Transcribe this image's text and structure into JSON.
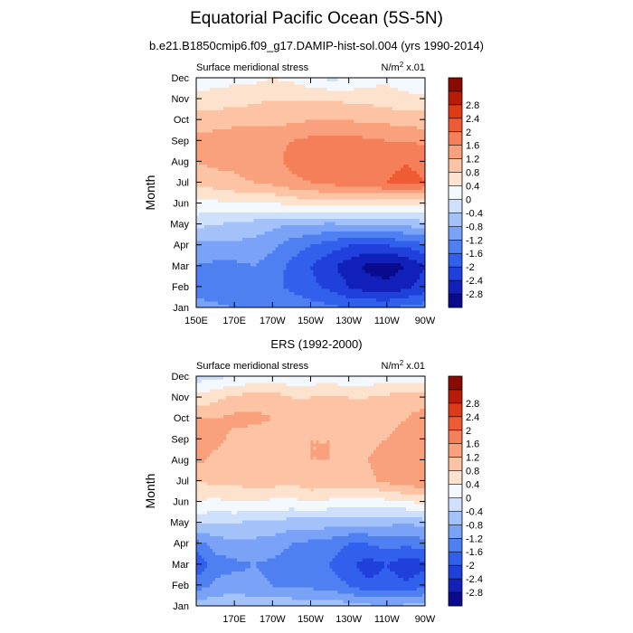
{
  "figure": {
    "title": "Equatorial Pacific Ocean (5S-5N)",
    "subtitle": "b.e21.B1850cmip6.f09_g17.DAMIP-hist-sol.004 (yrs 1990-2014)"
  },
  "colors": [
    "#0a0a8c",
    "#1020b8",
    "#2040dc",
    "#3060ec",
    "#4f80f2",
    "#7aa2f6",
    "#a4c2fa",
    "#cfe0fd",
    "#f4f9ff",
    "#fde2cd",
    "#fcc4a4",
    "#f9a07c",
    "#f57f58",
    "#ef5b35",
    "#df3a16",
    "#b81c08",
    "#8a0a00"
  ],
  "colorbar": {
    "levels": [
      -2.8,
      -2.4,
      -2,
      -1.6,
      -1.2,
      -0.8,
      -0.4,
      0,
      0.4,
      0.8,
      1.2,
      1.6,
      2,
      2.4,
      2.8
    ],
    "tick_labels": [
      "-2.8",
      "-2.4",
      "-2",
      "-1.6",
      "-1.2",
      "-0.8",
      "-0.4",
      "0",
      "0.4",
      "0.8",
      "1.2",
      "1.6",
      "2",
      "2.4",
      "2.8"
    ]
  },
  "chart_data": [
    {
      "type": "heatmap",
      "panel_title": "",
      "left_label": "Surface meridional stress",
      "right_label": "N/m",
      "right_label_sup": "2",
      "right_label_tail": " x.01",
      "ylabel": "Month",
      "x_tick_labels": [
        "150E",
        "170E",
        "170W",
        "150W",
        "130W",
        "110W",
        "90W"
      ],
      "y_tick_labels": [
        "Jan",
        "Feb",
        "Mar",
        "Apr",
        "May",
        "Jun",
        "Jul",
        "Aug",
        "Sep",
        "Oct",
        "Nov",
        "Dec"
      ],
      "x": [
        150,
        160,
        170,
        180,
        190,
        200,
        210,
        220,
        230,
        240,
        250,
        260,
        270
      ],
      "y": [
        "Jan",
        "Feb",
        "Mar",
        "Apr",
        "May",
        "Jun",
        "Jul",
        "Aug",
        "Sep",
        "Oct",
        "Nov",
        "Dec"
      ],
      "z": [
        [
          -1.0,
          -1.1,
          -1.2,
          -1.2,
          -1.2,
          -1.3,
          -1.4,
          -1.5,
          -1.6,
          -1.6,
          -1.6,
          -1.5,
          -1.4
        ],
        [
          -1.4,
          -1.5,
          -1.5,
          -1.4,
          -1.5,
          -1.7,
          -1.9,
          -2.1,
          -2.4,
          -2.6,
          -2.7,
          -2.5,
          -2.2
        ],
        [
          -1.2,
          -1.3,
          -1.3,
          -1.2,
          -1.4,
          -1.7,
          -2.0,
          -2.3,
          -2.6,
          -2.9,
          -3.0,
          -2.8,
          -2.4
        ],
        [
          -0.9,
          -0.9,
          -0.9,
          -0.9,
          -1.1,
          -1.4,
          -1.6,
          -1.8,
          -2.0,
          -2.1,
          -2.0,
          -1.9,
          -1.7
        ],
        [
          -0.3,
          -0.4,
          -0.5,
          -0.6,
          -0.7,
          -0.8,
          -0.8,
          -0.9,
          -0.8,
          -0.8,
          -0.7,
          -0.7,
          -0.6
        ],
        [
          0.3,
          0.3,
          0.4,
          0.4,
          0.4,
          0.5,
          0.6,
          0.6,
          0.6,
          0.6,
          0.6,
          0.5,
          0.5
        ],
        [
          0.9,
          1.0,
          1.1,
          1.2,
          1.3,
          1.5,
          1.6,
          1.7,
          1.8,
          1.9,
          2.0,
          2.1,
          2.0
        ],
        [
          1.2,
          1.3,
          1.3,
          1.4,
          1.5,
          1.7,
          1.8,
          1.8,
          1.9,
          1.9,
          1.9,
          2.0,
          1.9
        ],
        [
          1.3,
          1.4,
          1.4,
          1.5,
          1.5,
          1.6,
          1.7,
          1.7,
          1.7,
          1.7,
          1.6,
          1.6,
          1.5
        ],
        [
          1.0,
          1.0,
          1.1,
          1.1,
          1.1,
          1.1,
          1.2,
          1.2,
          1.2,
          1.1,
          1.1,
          1.0,
          1.0
        ],
        [
          0.5,
          0.6,
          0.6,
          0.7,
          0.8,
          0.8,
          0.8,
          0.8,
          0.7,
          0.7,
          0.6,
          0.5,
          0.5
        ],
        [
          0.2,
          0.2,
          0.3,
          0.3,
          0.4,
          0.3,
          0.1,
          -0.1,
          0.0,
          0.2,
          0.3,
          0.2,
          0.1
        ]
      ]
    },
    {
      "type": "heatmap",
      "panel_title": "ERS (1992-2000)",
      "left_label": "Surface meridional stress",
      "right_label": "N/m",
      "right_label_sup": "2",
      "right_label_tail": " x.01",
      "ylabel": "Month",
      "x_tick_labels": [
        "170E",
        "170W",
        "150W",
        "130W",
        "110W",
        "90W"
      ],
      "y_tick_labels": [
        "Jan",
        "Feb",
        "Mar",
        "Apr",
        "May",
        "Jun",
        "Jul",
        "Aug",
        "Sep",
        "Oct",
        "Nov",
        "Dec"
      ],
      "x": [
        150,
        160,
        170,
        180,
        190,
        200,
        210,
        220,
        230,
        240,
        250,
        260,
        270
      ],
      "y": [
        "Jan",
        "Feb",
        "Mar",
        "Apr",
        "May",
        "Jun",
        "Jul",
        "Aug",
        "Sep",
        "Oct",
        "Nov",
        "Dec"
      ],
      "z": [
        [
          -0.6,
          -0.5,
          -0.5,
          -0.5,
          -0.4,
          -0.5,
          -0.6,
          -0.5,
          -0.6,
          -0.7,
          -0.8,
          -0.7,
          -0.6
        ],
        [
          -1.4,
          -1.1,
          -1.0,
          -1.1,
          -1.2,
          -1.3,
          -1.3,
          -1.4,
          -1.6,
          -1.9,
          -1.8,
          -1.9,
          -1.7
        ],
        [
          -1.9,
          -1.4,
          -1.3,
          -1.2,
          -1.3,
          -1.4,
          -1.5,
          -1.6,
          -1.9,
          -2.2,
          -2.0,
          -2.3,
          -2.1
        ],
        [
          -1.4,
          -1.0,
          -0.9,
          -0.9,
          -1.0,
          -1.2,
          -1.3,
          -1.4,
          -1.6,
          -1.6,
          -1.4,
          -1.5,
          -1.4
        ],
        [
          -0.3,
          -0.4,
          -0.4,
          -0.5,
          -0.5,
          -0.6,
          -0.6,
          -0.6,
          -0.7,
          -0.7,
          -0.7,
          -0.8,
          -0.6
        ],
        [
          0.4,
          0.3,
          0.4,
          0.4,
          0.3,
          0.3,
          0.4,
          0.3,
          0.3,
          0.2,
          0.3,
          0.4,
          0.5
        ],
        [
          0.8,
          0.9,
          0.9,
          1.0,
          1.0,
          0.9,
          1.1,
          1.1,
          1.0,
          1.1,
          1.3,
          1.4,
          1.6
        ],
        [
          1.3,
          1.1,
          1.0,
          1.1,
          1.1,
          1.0,
          1.2,
          1.2,
          1.1,
          1.2,
          1.4,
          1.5,
          1.6
        ],
        [
          1.6,
          1.3,
          1.1,
          1.0,
          1.0,
          1.1,
          1.2,
          1.2,
          1.2,
          1.1,
          1.2,
          1.3,
          1.6
        ],
        [
          1.2,
          1.2,
          1.3,
          1.3,
          1.2,
          1.0,
          1.2,
          1.1,
          1.0,
          1.0,
          1.1,
          1.2,
          1.4
        ],
        [
          0.5,
          0.7,
          0.9,
          1.0,
          1.0,
          0.8,
          0.8,
          0.9,
          0.8,
          0.8,
          0.9,
          1.0,
          1.0
        ],
        [
          -0.2,
          -0.1,
          0.0,
          0.1,
          0.2,
          0.1,
          0.1,
          0.2,
          0.0,
          0.1,
          0.2,
          0.1,
          0.1
        ]
      ]
    }
  ]
}
